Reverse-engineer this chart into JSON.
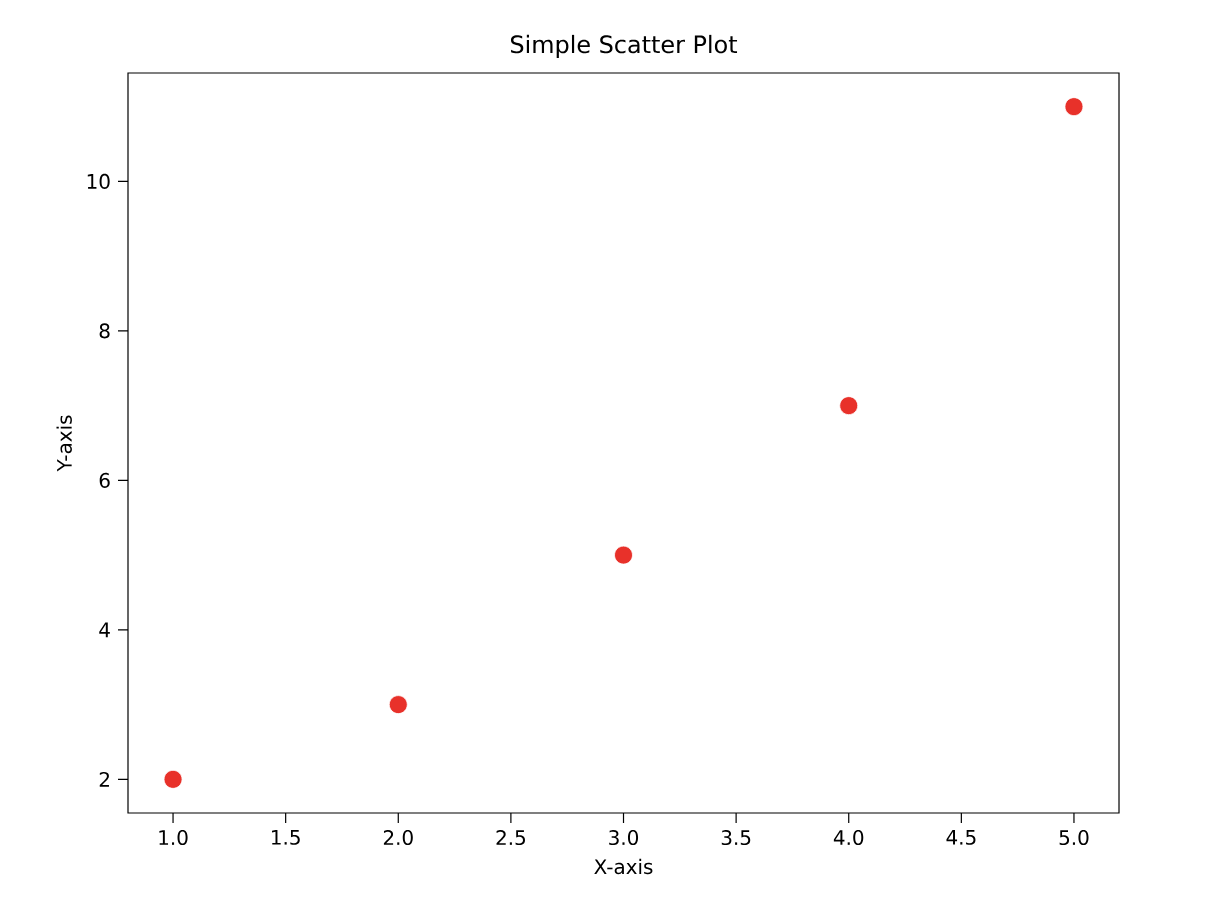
{
  "chart_data": {
    "type": "scatter",
    "title": "Simple Scatter Plot",
    "xlabel": "X-axis",
    "ylabel": "Y-axis",
    "x": [
      1,
      2,
      3,
      4,
      5
    ],
    "values": [
      2,
      3,
      5,
      7,
      11
    ],
    "color": "#e8312a",
    "xlim": [
      0.8,
      5.2
    ],
    "ylim": [
      1.55,
      11.45
    ],
    "xticks": [
      {
        "value": 1,
        "label": "1.0"
      },
      {
        "value": 1.5,
        "label": "1.5"
      },
      {
        "value": 2,
        "label": "2.0"
      },
      {
        "value": 2.5,
        "label": "2.5"
      },
      {
        "value": 3,
        "label": "3.0"
      },
      {
        "value": 3.5,
        "label": "3.5"
      },
      {
        "value": 4,
        "label": "4.0"
      },
      {
        "value": 4.5,
        "label": "4.5"
      },
      {
        "value": 5,
        "label": "5.0"
      }
    ],
    "yticks": [
      2,
      4,
      6,
      8,
      10
    ]
  }
}
